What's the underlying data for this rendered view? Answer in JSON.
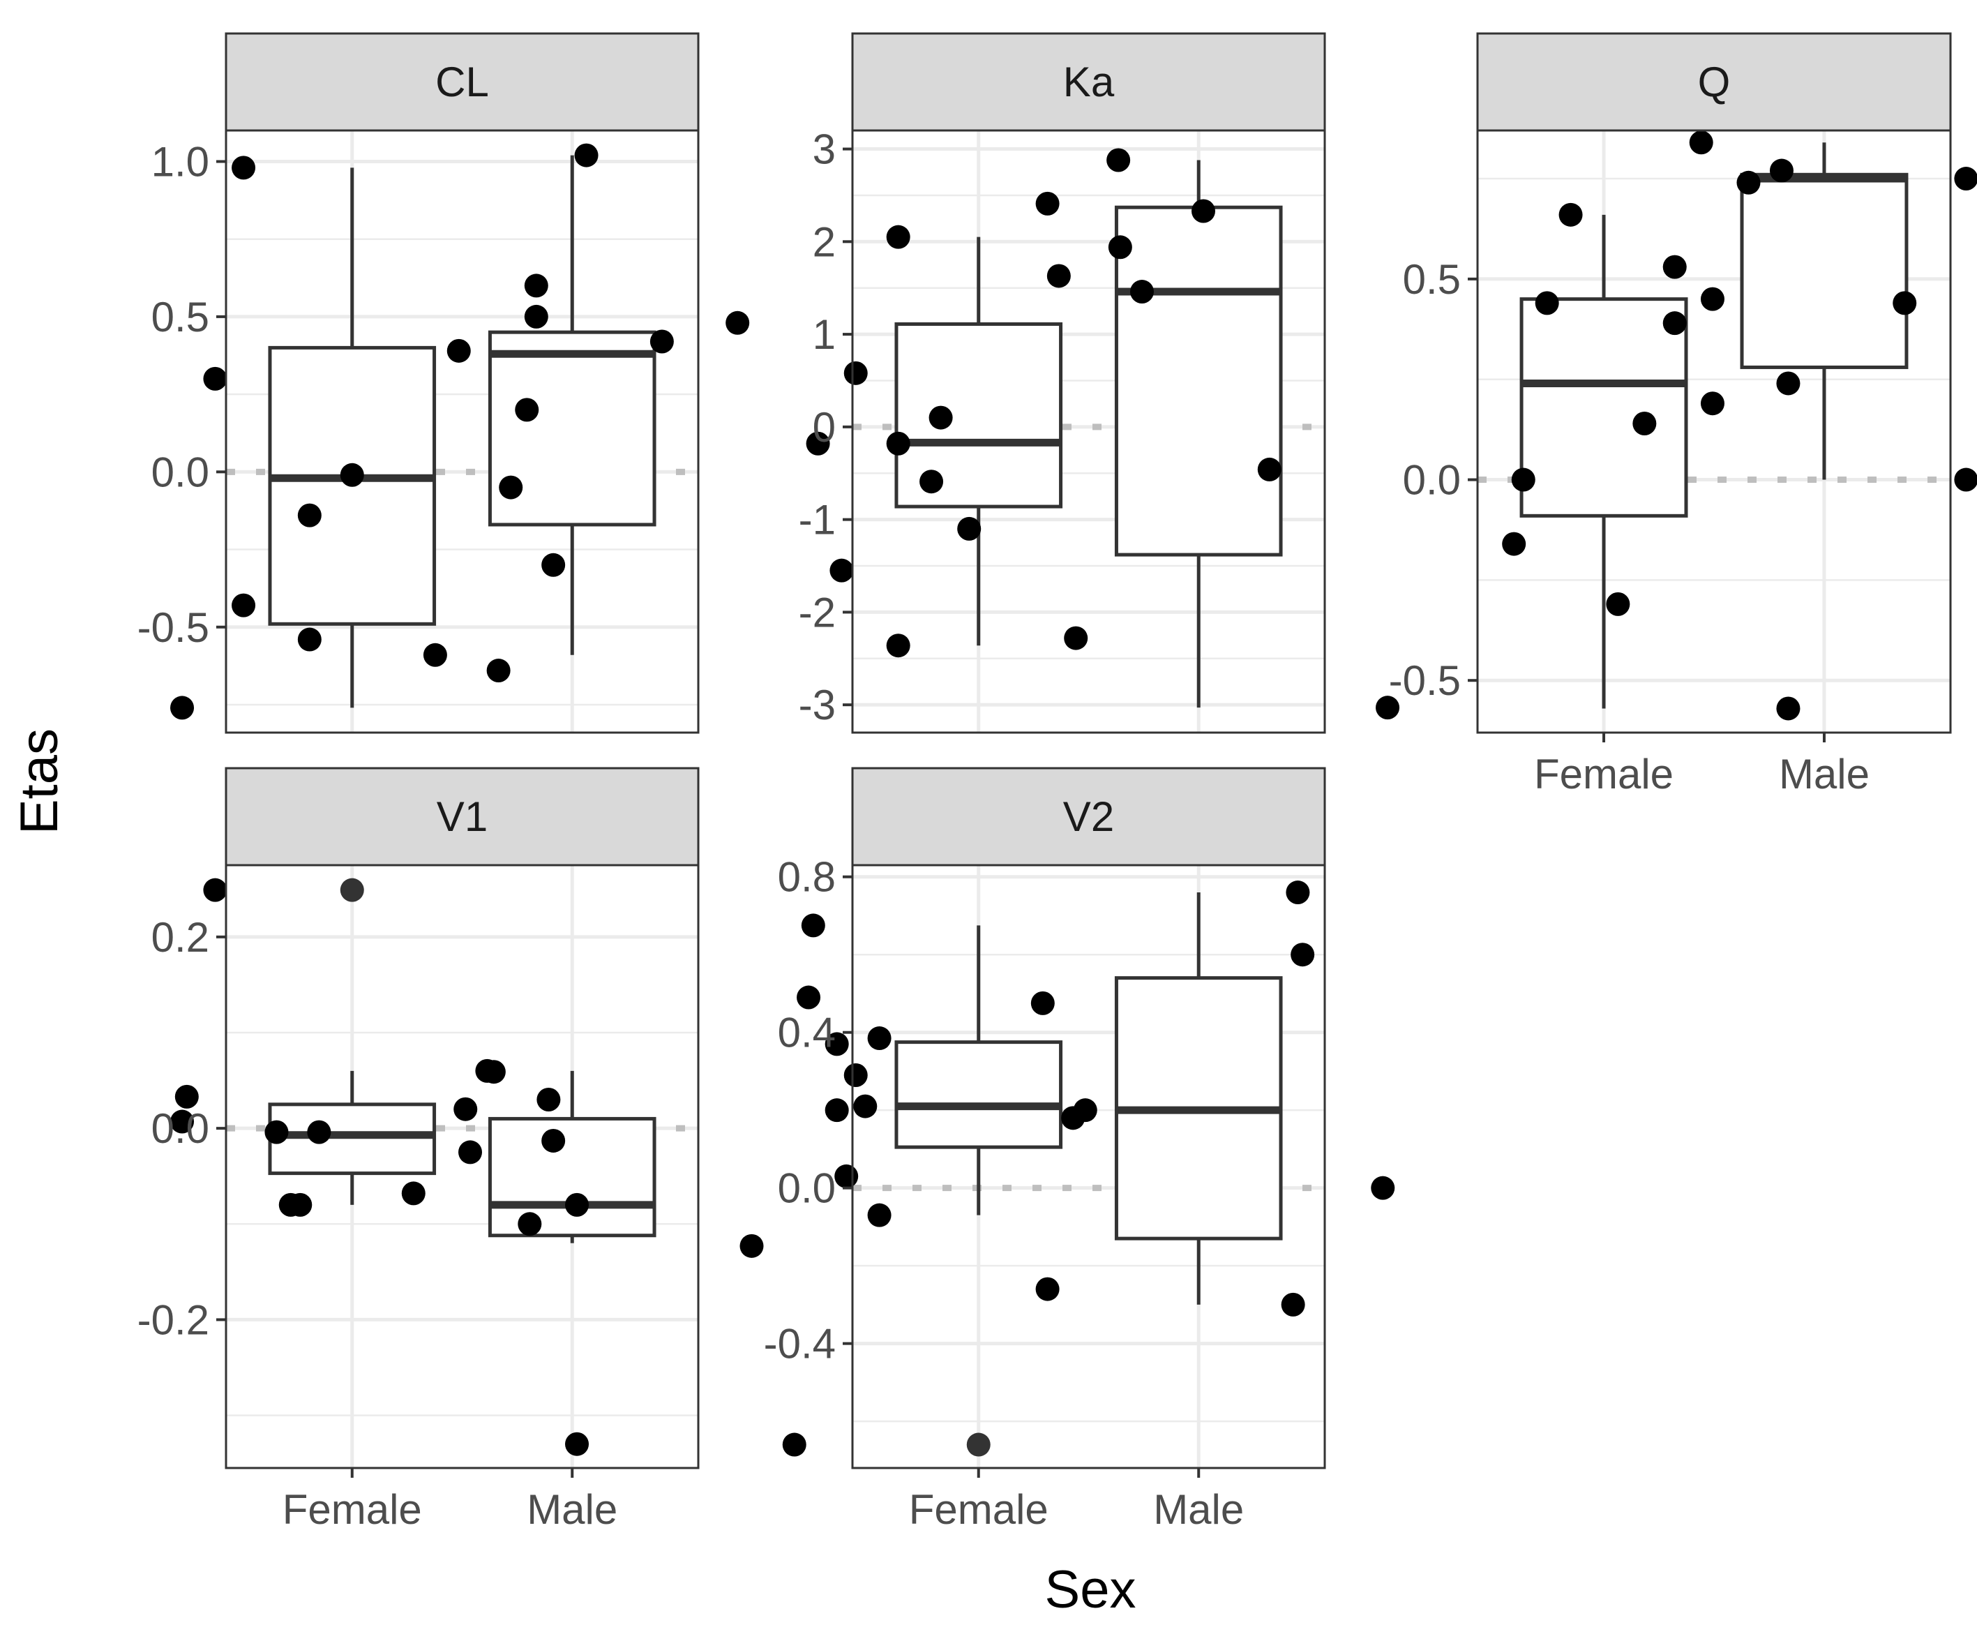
{
  "figure": {
    "ylabel": "Etas",
    "xlabel": "Sex",
    "colors": {
      "strip_fill": "#d9d9d9",
      "panel_border": "#333333",
      "grid": "#ebebeb",
      "point": "#000000",
      "outlier_point": "#333333",
      "box_line": "#333333",
      "ref_line": "#bebebe"
    }
  },
  "chart_data": [
    {
      "type": "box",
      "panel": "CL",
      "categories": [
        "Female",
        "Male"
      ],
      "ylim": [
        -0.84,
        1.1
      ],
      "yticks": [
        -0.5,
        0.0,
        0.5,
        1.0
      ],
      "ytick_labels": [
        "-0.5",
        "0.0",
        "0.5",
        "1.0"
      ],
      "reference_line": 0,
      "boxes": [
        {
          "category": "Female",
          "q1": -0.49,
          "median": -0.02,
          "q3": 0.4,
          "whisker_low": -0.76,
          "whisker_high": 0.98
        },
        {
          "category": "Male",
          "q1": -0.17,
          "median": 0.38,
          "q3": 0.45,
          "whisker_low": -0.59,
          "whisker_high": 1.02
        }
      ],
      "points": [
        {
          "cat": 0,
          "jitter": -0.36,
          "y": -0.76
        },
        {
          "cat": 0,
          "jitter": -0.23,
          "y": 0.98
        },
        {
          "cat": 0,
          "jitter": -0.29,
          "y": 0.3
        },
        {
          "cat": 0,
          "jitter": -0.23,
          "y": -0.43
        },
        {
          "cat": 0,
          "jitter": -0.09,
          "y": -0.54
        },
        {
          "cat": 0,
          "jitter": -0.09,
          "y": -0.14
        },
        {
          "cat": 0,
          "jitter": 0.0,
          "y": -0.01
        },
        {
          "cat": 0,
          "jitter": 0.31,
          "y": -0.64
        },
        {
          "cat": 0,
          "jitter": 0.37,
          "y": 0.2
        },
        {
          "cat": 0,
          "jitter": 0.39,
          "y": 0.5
        },
        {
          "cat": 0,
          "jitter": 0.39,
          "y": 0.6
        },
        {
          "cat": 1,
          "jitter": -0.29,
          "y": -0.59
        },
        {
          "cat": 1,
          "jitter": -0.24,
          "y": 0.39
        },
        {
          "cat": 1,
          "jitter": -0.13,
          "y": -0.05
        },
        {
          "cat": 1,
          "jitter": -0.04,
          "y": -0.3
        },
        {
          "cat": 1,
          "jitter": 0.03,
          "y": 1.02
        },
        {
          "cat": 1,
          "jitter": 0.19,
          "y": 0.42
        },
        {
          "cat": 1,
          "jitter": 0.35,
          "y": 0.48
        }
      ],
      "outliers": [],
      "show_x_ticks": false
    },
    {
      "type": "box",
      "panel": "Ka",
      "categories": [
        "Female",
        "Male"
      ],
      "ylim": [
        -3.3,
        3.2
      ],
      "yticks": [
        -3,
        -2,
        -1,
        0,
        1,
        2,
        3
      ],
      "ytick_labels": [
        "-3",
        "-2",
        "-1",
        "0",
        "1",
        "2",
        "3"
      ],
      "reference_line": 0,
      "boxes": [
        {
          "category": "Female",
          "q1": -0.86,
          "median": -0.17,
          "q3": 1.11,
          "whisker_low": -2.36,
          "whisker_high": 2.05
        },
        {
          "category": "Male",
          "q1": -1.38,
          "median": 1.46,
          "q3": 2.37,
          "whisker_low": -3.03,
          "whisker_high": 2.88
        }
      ],
      "points": [
        {
          "cat": 0,
          "jitter": -0.34,
          "y": -0.18
        },
        {
          "cat": 0,
          "jitter": -0.29,
          "y": -1.55
        },
        {
          "cat": 0,
          "jitter": -0.26,
          "y": 0.58
        },
        {
          "cat": 0,
          "jitter": -0.17,
          "y": 2.05
        },
        {
          "cat": 0,
          "jitter": -0.17,
          "y": -0.18
        },
        {
          "cat": 0,
          "jitter": -0.17,
          "y": -2.36
        },
        {
          "cat": 0,
          "jitter": -0.1,
          "y": -0.59
        },
        {
          "cat": 0,
          "jitter": -0.08,
          "y": 0.1
        },
        {
          "cat": 0,
          "jitter": -0.02,
          "y": -1.1
        },
        {
          "cat": 0,
          "jitter": 0.17,
          "y": 1.63
        },
        {
          "cat": 0,
          "jitter": 0.3,
          "y": 1.94
        },
        {
          "cat": 1,
          "jitter": -0.32,
          "y": 2.41
        },
        {
          "cat": 1,
          "jitter": -0.26,
          "y": -2.28
        },
        {
          "cat": 1,
          "jitter": -0.17,
          "y": 2.88
        },
        {
          "cat": 1,
          "jitter": -0.12,
          "y": 1.46
        },
        {
          "cat": 1,
          "jitter": 0.01,
          "y": 2.33
        },
        {
          "cat": 1,
          "jitter": 0.15,
          "y": -0.46
        },
        {
          "cat": 1,
          "jitter": 0.4,
          "y": -3.03
        }
      ],
      "outliers": [],
      "show_x_ticks": false
    },
    {
      "type": "box",
      "panel": "Q",
      "categories": [
        "Female",
        "Male"
      ],
      "ylim": [
        -0.63,
        0.87
      ],
      "yticks": [
        -0.5,
        0.0,
        0.5
      ],
      "ytick_labels": [
        "-0.5",
        "0.0",
        "0.5"
      ],
      "reference_line": 0,
      "boxes": [
        {
          "category": "Female",
          "q1": -0.09,
          "median": 0.24,
          "q3": 0.45,
          "whisker_low": -0.57,
          "whisker_high": 0.66
        },
        {
          "category": "Male",
          "q1": 0.28,
          "median": 0.75,
          "q3": 0.76,
          "whisker_low": 0.0,
          "whisker_high": 0.84
        }
      ],
      "points": [
        {
          "cat": 0,
          "jitter": -0.19,
          "y": -0.16
        },
        {
          "cat": 0,
          "jitter": -0.17,
          "y": 0.0
        },
        {
          "cat": 0,
          "jitter": -0.12,
          "y": 0.44
        },
        {
          "cat": 0,
          "jitter": -0.07,
          "y": 0.66
        },
        {
          "cat": 0,
          "jitter": 0.03,
          "y": -0.31
        },
        {
          "cat": 0,
          "jitter": 0.15,
          "y": 0.53
        },
        {
          "cat": 0,
          "jitter": 0.15,
          "y": 0.39
        },
        {
          "cat": 0,
          "jitter": 0.23,
          "y": 0.19
        },
        {
          "cat": 0,
          "jitter": 0.23,
          "y": 0.45
        },
        {
          "cat": 0,
          "jitter": 0.39,
          "y": -0.57
        },
        {
          "cat": 0,
          "jitter": 0.39,
          "y": 0.24
        },
        {
          "cat": 1,
          "jitter": -0.38,
          "y": 0.14
        },
        {
          "cat": 1,
          "jitter": -0.26,
          "y": 0.84
        },
        {
          "cat": 1,
          "jitter": -0.16,
          "y": 0.74
        },
        {
          "cat": 1,
          "jitter": -0.09,
          "y": 0.77
        },
        {
          "cat": 1,
          "jitter": 0.17,
          "y": 0.44
        },
        {
          "cat": 1,
          "jitter": 0.3,
          "y": 0.75
        },
        {
          "cat": 1,
          "jitter": 0.3,
          "y": 0.0
        }
      ],
      "outliers": [],
      "show_x_ticks": true
    },
    {
      "type": "box",
      "panel": "V1",
      "categories": [
        "Female",
        "Male"
      ],
      "ylim": [
        -0.355,
        0.275
      ],
      "yticks": [
        -0.2,
        0.0,
        0.2
      ],
      "ytick_labels": [
        "-0.2",
        "0.0",
        "0.2"
      ],
      "reference_line": 0,
      "boxes": [
        {
          "category": "Female",
          "q1": -0.047,
          "median": -0.007,
          "q3": 0.025,
          "whisker_low": -0.08,
          "whisker_high": 0.06
        },
        {
          "category": "Male",
          "q1": -0.112,
          "median": -0.08,
          "q3": 0.01,
          "whisker_low": -0.12,
          "whisker_high": 0.06
        }
      ],
      "points": [
        {
          "cat": 0,
          "jitter": -0.36,
          "y": 0.007
        },
        {
          "cat": 0,
          "jitter": -0.35,
          "y": 0.033
        },
        {
          "cat": 0,
          "jitter": -0.29,
          "y": 0.249
        },
        {
          "cat": 0,
          "jitter": -0.16,
          "y": -0.004
        },
        {
          "cat": 0,
          "jitter": -0.13,
          "y": -0.08
        },
        {
          "cat": 0,
          "jitter": -0.11,
          "y": -0.08
        },
        {
          "cat": 0,
          "jitter": -0.07,
          "y": -0.004
        },
        {
          "cat": 0,
          "jitter": 0.13,
          "y": -0.068
        },
        {
          "cat": 0,
          "jitter": 0.24,
          "y": 0.02
        },
        {
          "cat": 0,
          "jitter": 0.25,
          "y": -0.025
        },
        {
          "cat": 0,
          "jitter": 0.3,
          "y": 0.059
        },
        {
          "cat": 1,
          "jitter": -0.18,
          "y": 0.06
        },
        {
          "cat": 1,
          "jitter": -0.09,
          "y": -0.1
        },
        {
          "cat": 1,
          "jitter": -0.05,
          "y": 0.03
        },
        {
          "cat": 1,
          "jitter": -0.04,
          "y": -0.013
        },
        {
          "cat": 1,
          "jitter": 0.01,
          "y": -0.33
        },
        {
          "cat": 1,
          "jitter": 0.01,
          "y": -0.08
        },
        {
          "cat": 1,
          "jitter": 0.38,
          "y": -0.123
        }
      ],
      "outliers": [
        {
          "cat": 0,
          "y": 0.249
        }
      ],
      "show_x_ticks": true
    },
    {
      "type": "box",
      "panel": "V2",
      "categories": [
        "Female",
        "Male"
      ],
      "ylim": [
        -0.72,
        0.83
      ],
      "yticks": [
        -0.4,
        0.0,
        0.4,
        0.8
      ],
      "ytick_labels": [
        "-0.4",
        "0.0",
        "0.4",
        "0.8"
      ],
      "reference_line": 0,
      "boxes": [
        {
          "category": "Female",
          "q1": 0.105,
          "median": 0.21,
          "q3": 0.375,
          "whisker_low": -0.07,
          "whisker_high": 0.675
        },
        {
          "category": "Male",
          "q1": -0.13,
          "median": 0.2,
          "q3": 0.54,
          "whisker_low": -0.3,
          "whisker_high": 0.76
        }
      ],
      "points": [
        {
          "cat": 0,
          "jitter": -0.39,
          "y": -0.66
        },
        {
          "cat": 0,
          "jitter": -0.35,
          "y": 0.675
        },
        {
          "cat": 0,
          "jitter": -0.36,
          "y": 0.49
        },
        {
          "cat": 0,
          "jitter": -0.3,
          "y": 0.37
        },
        {
          "cat": 0,
          "jitter": -0.3,
          "y": 0.2
        },
        {
          "cat": 0,
          "jitter": -0.28,
          "y": 0.03
        },
        {
          "cat": 0,
          "jitter": -0.26,
          "y": 0.29
        },
        {
          "cat": 0,
          "jitter": -0.24,
          "y": 0.21
        },
        {
          "cat": 0,
          "jitter": -0.21,
          "y": 0.385
        },
        {
          "cat": 0,
          "jitter": -0.21,
          "y": -0.07
        },
        {
          "cat": 0,
          "jitter": 0.2,
          "y": 0.18
        },
        {
          "cat": 1,
          "jitter": -0.33,
          "y": 0.475
        },
        {
          "cat": 1,
          "jitter": -0.32,
          "y": -0.26
        },
        {
          "cat": 1,
          "jitter": -0.24,
          "y": 0.2
        },
        {
          "cat": 1,
          "jitter": 0.2,
          "y": -0.3
        },
        {
          "cat": 1,
          "jitter": 0.21,
          "y": 0.76
        },
        {
          "cat": 1,
          "jitter": 0.22,
          "y": 0.6
        },
        {
          "cat": 1,
          "jitter": 0.39,
          "y": 0.0
        }
      ],
      "outliers": [
        {
          "cat": 0,
          "y": -0.66
        }
      ],
      "show_x_ticks": true
    }
  ]
}
